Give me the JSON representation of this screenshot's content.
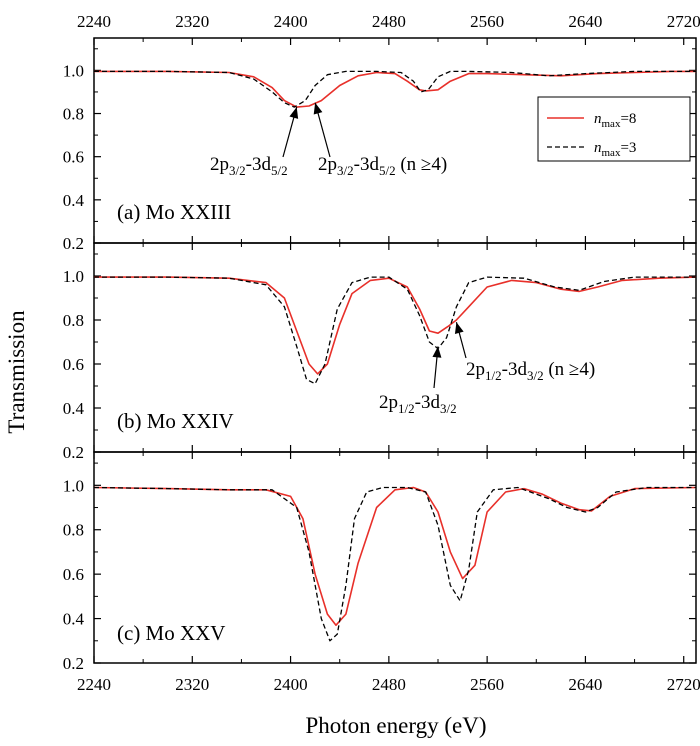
{
  "colors": {
    "series_nmax8": "#e8302a",
    "series_nmax3": "#000000",
    "axes": "#000000"
  },
  "chart_data": {
    "type": "line",
    "title": "",
    "xlabel": "Photon energy (eV)",
    "ylabel": "Transmission",
    "xlim": [
      2240,
      2730
    ],
    "x_ticks": [
      2240,
      2320,
      2400,
      2480,
      2560,
      2640,
      2720
    ],
    "y_ticks": [
      "0.2",
      "0.4",
      "0.6",
      "0.8",
      "1.0"
    ],
    "grid": false,
    "legend": {
      "placement": "top-right of panel (a)",
      "entries": [
        {
          "prefix": "n",
          "sub": "max",
          "suffix": "=8",
          "style": "solid",
          "color": "#e8302a"
        },
        {
          "prefix": "n",
          "sub": "max",
          "suffix": "=3",
          "style": "dashed",
          "color": "#000000"
        }
      ]
    },
    "panels": [
      {
        "label": "(a) Mo XXIII",
        "ylim": [
          0.2,
          1.15
        ],
        "annotations": [
          {
            "parts": [
              [
                "2p",
                ""
              ],
              [
                "3/2",
                "sub"
              ],
              [
                "-3d",
                ""
              ],
              [
                "5/2",
                "sub"
              ]
            ],
            "arrow_to": [
              2405,
              0.83
            ]
          },
          {
            "parts": [
              [
                "2p",
                ""
              ],
              [
                "3/2",
                "sub"
              ],
              [
                "-3d",
                ""
              ],
              [
                "5/2",
                "sub"
              ],
              [
                " (n ≥4)",
                ""
              ]
            ],
            "arrow_to": [
              2420,
              0.85
            ]
          }
        ],
        "series": [
          {
            "name": "nmax=8",
            "x": [
              2240,
              2300,
              2350,
              2370,
              2385,
              2395,
              2405,
              2415,
              2425,
              2440,
              2455,
              2470,
              2485,
              2495,
              2505,
              2510,
              2520,
              2530,
              2545,
              2560,
              2590,
              2620,
              2650,
              2680,
              2710,
              2730
            ],
            "y": [
              0.995,
              0.995,
              0.99,
              0.97,
              0.92,
              0.86,
              0.83,
              0.835,
              0.86,
              0.93,
              0.975,
              0.99,
              0.985,
              0.95,
              0.91,
              0.905,
              0.91,
              0.95,
              0.985,
              0.985,
              0.98,
              0.975,
              0.985,
              0.99,
              0.995,
              0.995
            ]
          },
          {
            "name": "nmax=3",
            "x": [
              2240,
              2300,
              2350,
              2370,
              2385,
              2395,
              2403,
              2412,
              2420,
              2430,
              2445,
              2470,
              2490,
              2500,
              2506,
              2512,
              2520,
              2530,
              2545,
              2580,
              2610,
              2640,
              2680,
              2730
            ],
            "y": [
              0.995,
              0.995,
              0.99,
              0.96,
              0.9,
              0.85,
              0.83,
              0.86,
              0.93,
              0.98,
              0.995,
              0.995,
              0.99,
              0.95,
              0.9,
              0.91,
              0.97,
              0.995,
              0.995,
              0.99,
              0.975,
              0.985,
              0.995,
              0.995
            ]
          }
        ]
      },
      {
        "label": "(b) Mo XXIV",
        "ylim": [
          0.2,
          1.15
        ],
        "annotations": [
          {
            "parts": [
              [
                "2p",
                ""
              ],
              [
                "1/2",
                "sub"
              ],
              [
                "-3d",
                ""
              ],
              [
                "3/2",
                "sub"
              ]
            ],
            "arrow_to": [
              2520,
              0.68
            ]
          },
          {
            "parts": [
              [
                "2p",
                ""
              ],
              [
                "1/2",
                "sub"
              ],
              [
                "-3d",
                ""
              ],
              [
                "3/2",
                "sub"
              ],
              [
                " (n ≥4)",
                ""
              ]
            ],
            "arrow_to": [
              2535,
              0.79
            ]
          }
        ],
        "series": [
          {
            "name": "nmax=8",
            "x": [
              2240,
              2300,
              2350,
              2380,
              2395,
              2405,
              2415,
              2422,
              2430,
              2440,
              2450,
              2465,
              2480,
              2495,
              2505,
              2513,
              2520,
              2528,
              2535,
              2545,
              2560,
              2580,
              2600,
              2620,
              2635,
              2650,
              2670,
              2700,
              2730
            ],
            "y": [
              0.995,
              0.995,
              0.99,
              0.97,
              0.9,
              0.75,
              0.6,
              0.555,
              0.6,
              0.78,
              0.92,
              0.98,
              0.99,
              0.95,
              0.85,
              0.75,
              0.74,
              0.77,
              0.8,
              0.86,
              0.95,
              0.98,
              0.97,
              0.94,
              0.93,
              0.95,
              0.98,
              0.99,
              0.995
            ]
          },
          {
            "name": "nmax=3",
            "x": [
              2240,
              2300,
              2350,
              2380,
              2395,
              2405,
              2413,
              2420,
              2428,
              2438,
              2450,
              2465,
              2480,
              2495,
              2505,
              2513,
              2520,
              2527,
              2535,
              2545,
              2560,
              2590,
              2615,
              2635,
              2655,
              2680,
              2730
            ],
            "y": [
              0.995,
              0.995,
              0.99,
              0.96,
              0.86,
              0.68,
              0.53,
              0.51,
              0.6,
              0.85,
              0.97,
              0.995,
              0.995,
              0.94,
              0.82,
              0.7,
              0.67,
              0.72,
              0.86,
              0.97,
              0.995,
              0.99,
              0.95,
              0.935,
              0.975,
              0.995,
              0.995
            ]
          }
        ]
      },
      {
        "label": "(c) Mo XXV",
        "ylim": [
          0.2,
          1.15
        ],
        "annotations": [],
        "series": [
          {
            "name": "nmax=8",
            "x": [
              2240,
              2300,
              2350,
              2380,
              2400,
              2410,
              2420,
              2430,
              2437,
              2445,
              2455,
              2470,
              2485,
              2500,
              2510,
              2520,
              2530,
              2540,
              2550,
              2560,
              2575,
              2590,
              2605,
              2620,
              2635,
              2645,
              2660,
              2680,
              2730
            ],
            "y": [
              0.99,
              0.985,
              0.98,
              0.98,
              0.95,
              0.85,
              0.6,
              0.42,
              0.37,
              0.42,
              0.65,
              0.9,
              0.98,
              0.99,
              0.97,
              0.88,
              0.7,
              0.58,
              0.64,
              0.88,
              0.97,
              0.985,
              0.96,
              0.92,
              0.89,
              0.885,
              0.95,
              0.985,
              0.99
            ]
          },
          {
            "name": "nmax=3",
            "x": [
              2240,
              2300,
              2350,
              2385,
              2405,
              2415,
              2425,
              2432,
              2438,
              2445,
              2452,
              2462,
              2475,
              2495,
              2510,
              2520,
              2530,
              2538,
              2545,
              2552,
              2565,
              2585,
              2610,
              2625,
              2640,
              2650,
              2665,
              2690,
              2730
            ],
            "y": [
              0.99,
              0.985,
              0.98,
              0.98,
              0.9,
              0.7,
              0.4,
              0.3,
              0.33,
              0.55,
              0.85,
              0.97,
              0.99,
              0.99,
              0.97,
              0.82,
              0.55,
              0.48,
              0.62,
              0.88,
              0.98,
              0.99,
              0.94,
              0.9,
              0.88,
              0.9,
              0.97,
              0.99,
              0.99
            ]
          }
        ]
      }
    ]
  }
}
